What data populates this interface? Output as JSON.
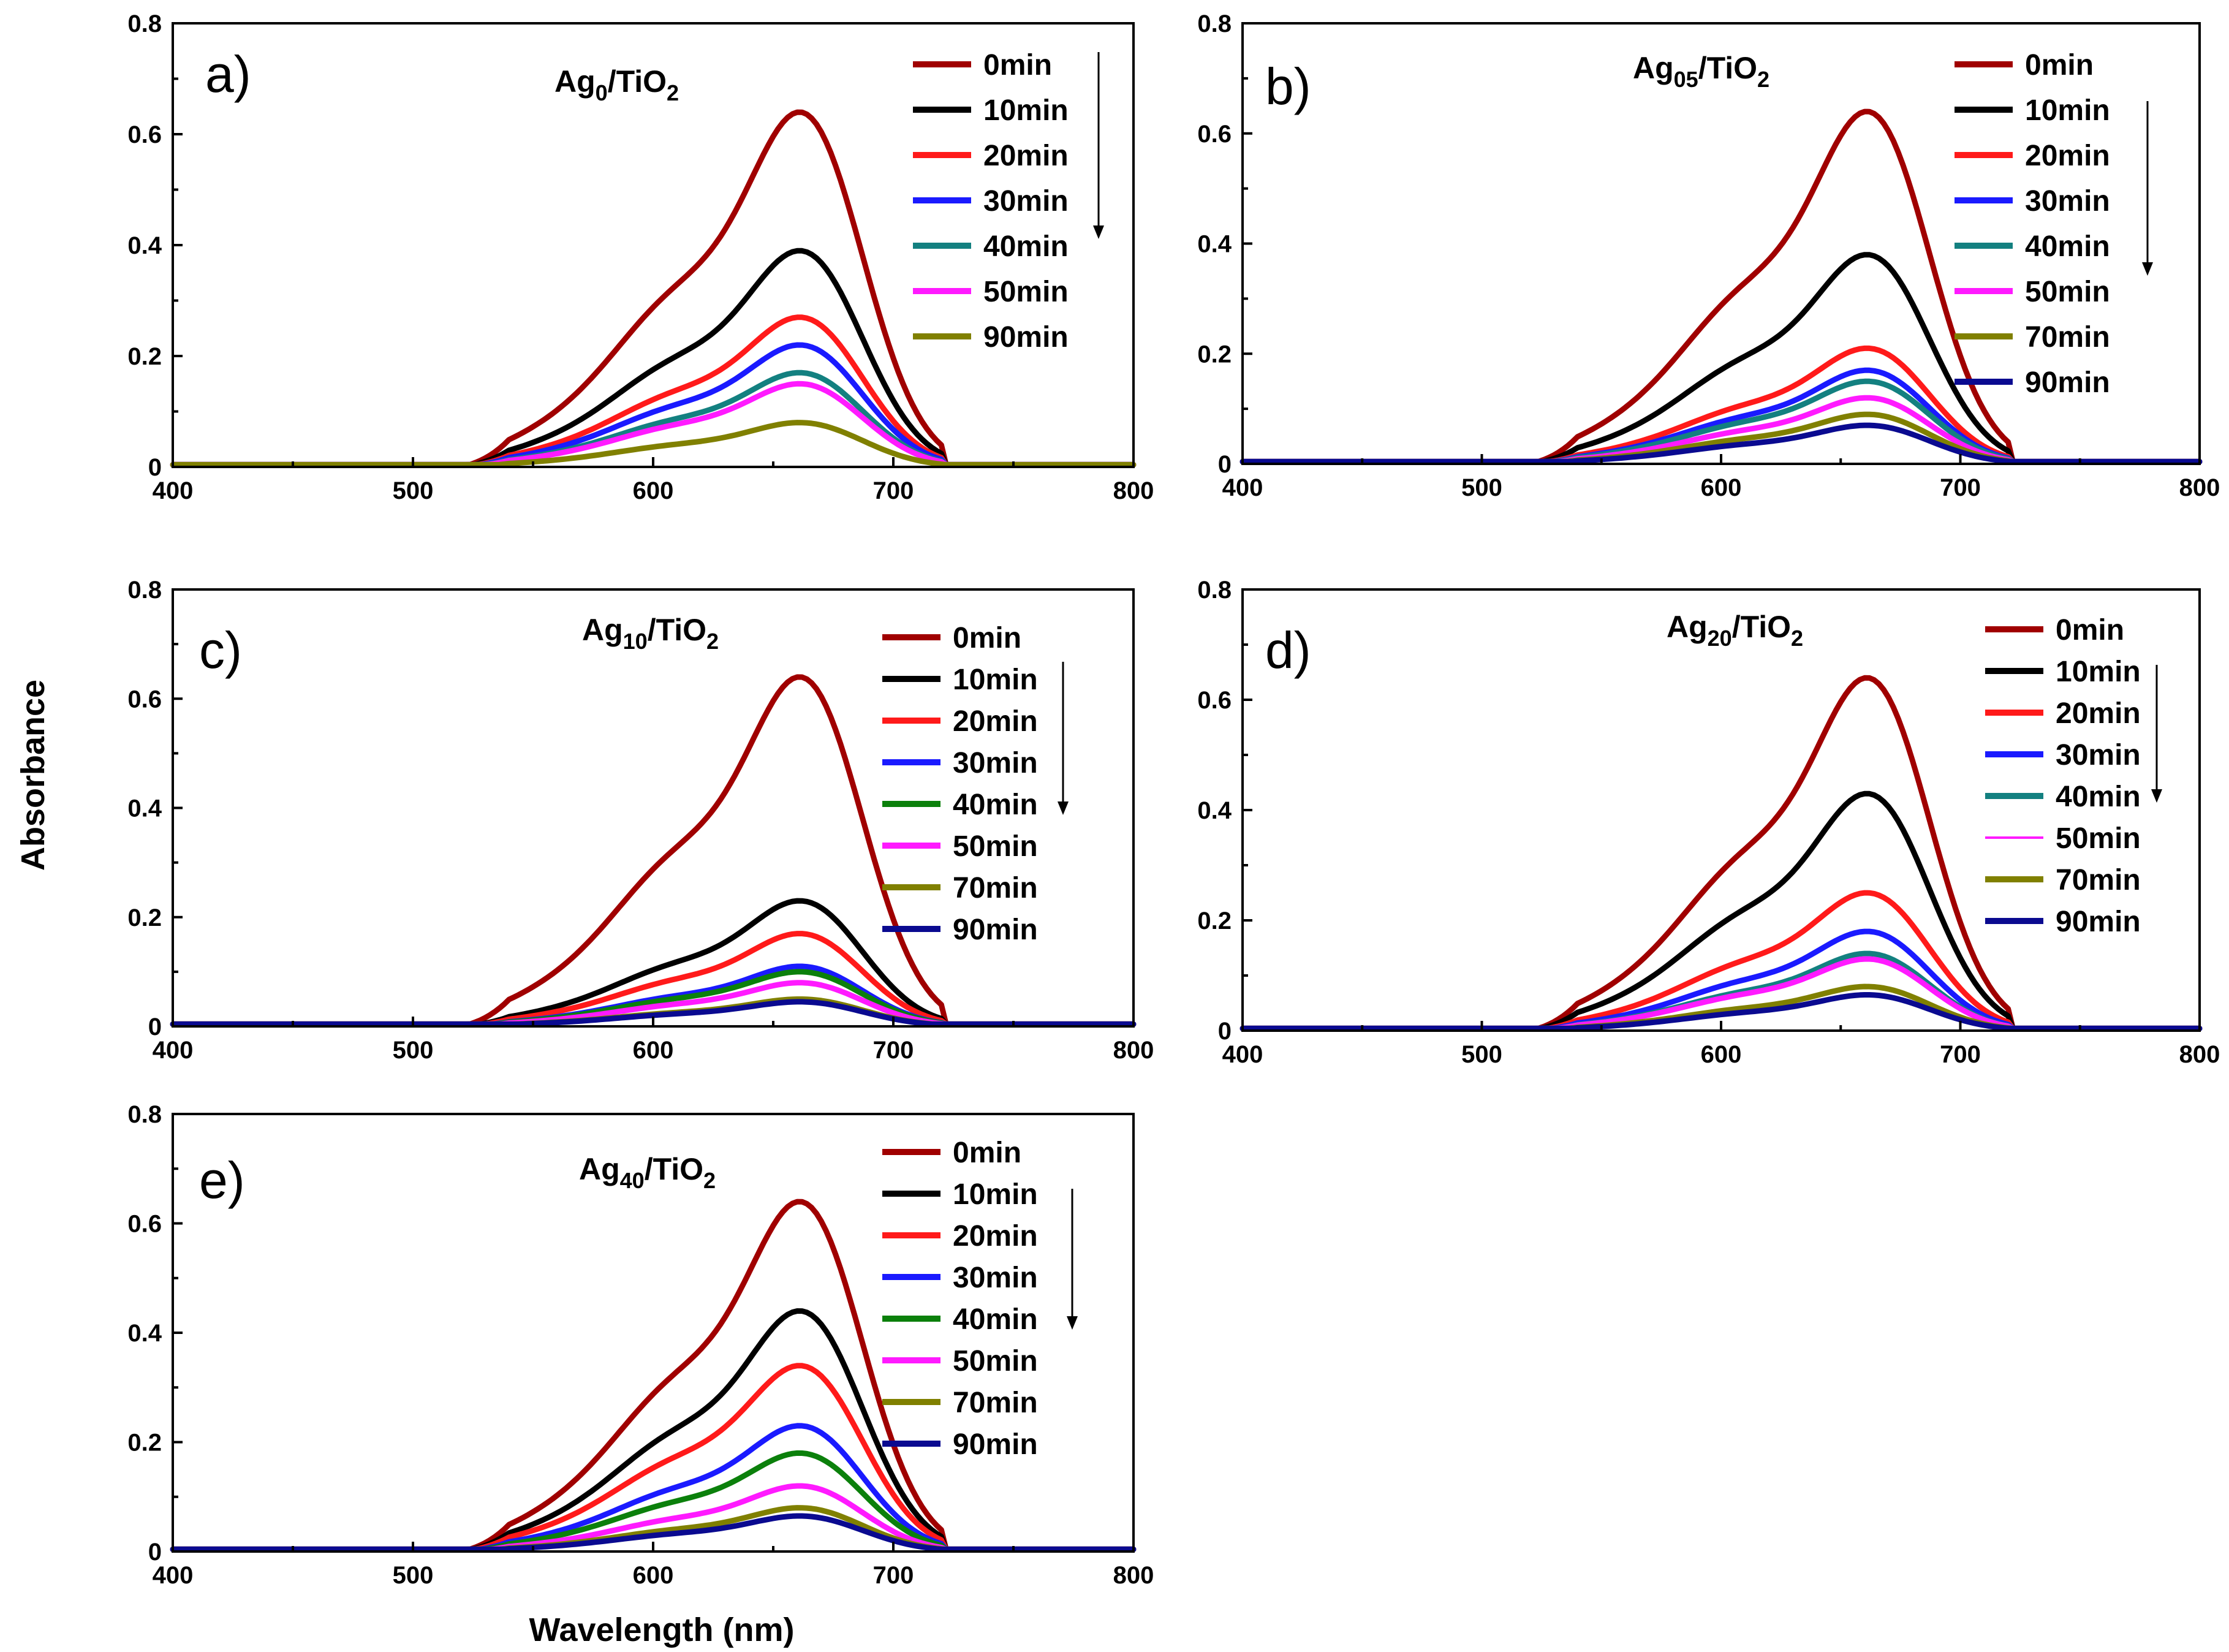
{
  "figure": {
    "ylabel": "Absorbance",
    "xlabel": "Wavelength (nm)"
  },
  "colors": {
    "0min": "#a00000",
    "10min": "#000000",
    "20min": "#ff1a1a",
    "30min": "#1a1aff",
    "40min_teal": "#138080",
    "40min_green": "#0b800b",
    "50min": "#ff1aff",
    "70min": "#808000",
    "90min_olive": "#808000",
    "90min_navy": "#0a0a90"
  },
  "chart_data": [
    {
      "type": "line",
      "panel": "a)",
      "title_main": "Ag",
      "title_sub": "0",
      "title_rest": "/TiO",
      "title_sub2": "2",
      "xlim": [
        400,
        800
      ],
      "ylim": [
        0,
        0.8
      ],
      "xticks": [
        400,
        500,
        600,
        700,
        800
      ],
      "yticks": [
        0,
        0.2,
        0.4,
        0.6,
        0.8
      ],
      "ytick_labels": [
        "0",
        "0.2",
        "0.4",
        "0.6",
        "0.8"
      ],
      "series": [
        {
          "name": "0min",
          "color": "#a00000",
          "peak": 0.64
        },
        {
          "name": "10min",
          "color": "#000000",
          "peak": 0.39
        },
        {
          "name": "20min",
          "color": "#ff1a1a",
          "peak": 0.27
        },
        {
          "name": "30min",
          "color": "#1a1aff",
          "peak": 0.22
        },
        {
          "name": "40min",
          "color": "#138080",
          "peak": 0.17
        },
        {
          "name": "50min",
          "color": "#ff1aff",
          "peak": 0.15
        },
        {
          "name": "90min",
          "color": "#808000",
          "peak": 0.08
        }
      ]
    },
    {
      "type": "line",
      "panel": "b)",
      "title_main": "Ag",
      "title_sub": "05",
      "title_rest": "/TiO",
      "title_sub2": "2",
      "xlim": [
        400,
        800
      ],
      "ylim": [
        0,
        0.8
      ],
      "xticks": [
        400,
        500,
        600,
        700,
        800
      ],
      "yticks": [
        0,
        0.2,
        0.4,
        0.6,
        0.8
      ],
      "ytick_labels": [
        "0",
        "0.2",
        "0.4",
        "0.6",
        "0.8"
      ],
      "series": [
        {
          "name": "0min",
          "color": "#a00000",
          "peak": 0.64
        },
        {
          "name": "10min",
          "color": "#000000",
          "peak": 0.38
        },
        {
          "name": "20min",
          "color": "#ff1a1a",
          "peak": 0.21
        },
        {
          "name": "30min",
          "color": "#1a1aff",
          "peak": 0.17
        },
        {
          "name": "40min",
          "color": "#138080",
          "peak": 0.15
        },
        {
          "name": "50min",
          "color": "#ff1aff",
          "peak": 0.12
        },
        {
          "name": "70min",
          "color": "#808000",
          "peak": 0.09
        },
        {
          "name": "90min",
          "color": "#0a0a90",
          "peak": 0.07
        }
      ]
    },
    {
      "type": "line",
      "panel": "c)",
      "title_main": "Ag",
      "title_sub": "10",
      "title_rest": "/TiO",
      "title_sub2": "2",
      "xlim": [
        400,
        800
      ],
      "ylim": [
        0,
        0.8
      ],
      "xticks": [
        400,
        500,
        600,
        700,
        800
      ],
      "yticks": [
        0,
        0.2,
        0.4,
        0.6,
        0.8
      ],
      "ytick_labels": [
        "0",
        "0.2",
        "0.4",
        "0.6",
        "0.8"
      ],
      "series": [
        {
          "name": "0min",
          "color": "#a00000",
          "peak": 0.64
        },
        {
          "name": "10min",
          "color": "#000000",
          "peak": 0.23
        },
        {
          "name": "20min",
          "color": "#ff1a1a",
          "peak": 0.17
        },
        {
          "name": "30min",
          "color": "#1a1aff",
          "peak": 0.11
        },
        {
          "name": "40min",
          "color": "#0b800b",
          "peak": 0.1
        },
        {
          "name": "50min",
          "color": "#ff1aff",
          "peak": 0.08
        },
        {
          "name": "70min",
          "color": "#808000",
          "peak": 0.05
        },
        {
          "name": "90min",
          "color": "#0a0a90",
          "peak": 0.045
        }
      ]
    },
    {
      "type": "line",
      "panel": "d)",
      "title_main": "Ag",
      "title_sub": "20",
      "title_rest": "/TiO",
      "title_sub2": "2",
      "xlim": [
        400,
        800
      ],
      "ylim": [
        0,
        0.8
      ],
      "xticks": [
        400,
        500,
        600,
        700,
        800
      ],
      "yticks": [
        0,
        0.2,
        0.4,
        0.6,
        0.8
      ],
      "ytick_labels": [
        "0",
        "0.2",
        "0.4",
        "0.6",
        "0.8"
      ],
      "series": [
        {
          "name": "0min",
          "color": "#a00000",
          "peak": 0.64
        },
        {
          "name": "10min",
          "color": "#000000",
          "peak": 0.43
        },
        {
          "name": "20min",
          "color": "#ff1a1a",
          "peak": 0.25
        },
        {
          "name": "30min",
          "color": "#1a1aff",
          "peak": 0.18
        },
        {
          "name": "40min",
          "color": "#138080",
          "peak": 0.14
        },
        {
          "name": "50min",
          "color": "#ff1aff",
          "peak": 0.13
        },
        {
          "name": "70min",
          "color": "#808000",
          "peak": 0.08
        },
        {
          "name": "90min",
          "color": "#0a0a90",
          "peak": 0.065
        }
      ]
    },
    {
      "type": "line",
      "panel": "e)",
      "title_main": "Ag",
      "title_sub": "40",
      "title_rest": "/TiO",
      "title_sub2": "2",
      "xlim": [
        400,
        800
      ],
      "ylim": [
        0,
        0.8
      ],
      "xticks": [
        400,
        500,
        600,
        700,
        800
      ],
      "yticks": [
        0,
        0.2,
        0.4,
        0.6,
        0.8
      ],
      "ytick_labels": [
        "0",
        "0.2",
        "0.4",
        "0.6",
        "0.8"
      ],
      "series": [
        {
          "name": "0min",
          "color": "#a00000",
          "peak": 0.64
        },
        {
          "name": "10min",
          "color": "#000000",
          "peak": 0.44
        },
        {
          "name": "20min",
          "color": "#ff1a1a",
          "peak": 0.34
        },
        {
          "name": "30min",
          "color": "#1a1aff",
          "peak": 0.23
        },
        {
          "name": "40min",
          "color": "#0b800b",
          "peak": 0.18
        },
        {
          "name": "50min",
          "color": "#ff1aff",
          "peak": 0.12
        },
        {
          "name": "70min",
          "color": "#808000",
          "peak": 0.08
        },
        {
          "name": "90min",
          "color": "#0a0a90",
          "peak": 0.065
        }
      ]
    }
  ]
}
